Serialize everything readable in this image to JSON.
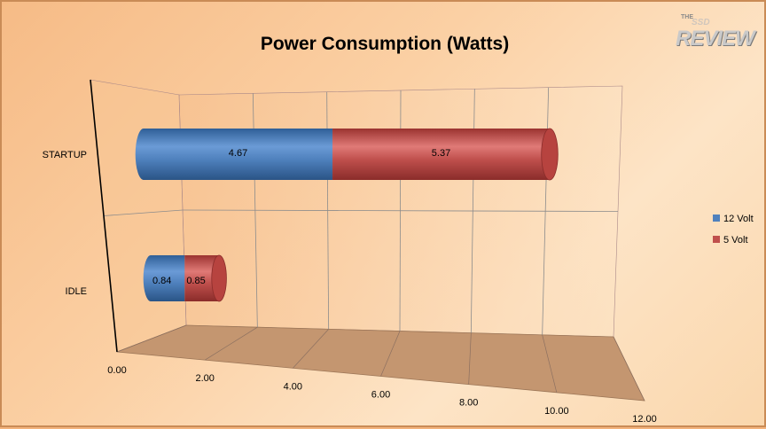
{
  "chart_data": {
    "type": "bar",
    "orientation": "horizontal",
    "stacked": true,
    "style": "3d-cylinder",
    "title": "Power Consumption (Watts)",
    "categories": [
      "STARTUP",
      "IDLE"
    ],
    "series": [
      {
        "name": "12 Volt",
        "values": [
          4.67,
          0.84
        ],
        "color": "#4f81bd"
      },
      {
        "name": "5 Volt",
        "values": [
          5.37,
          0.85
        ],
        "color": "#c0504d"
      }
    ],
    "xlim": [
      0,
      12
    ],
    "ticks": [
      "0.00",
      "2.00",
      "4.00",
      "6.00",
      "8.00",
      "10.00",
      "12.00"
    ],
    "data_labels": true,
    "grid": true,
    "legend_position": "right"
  },
  "logo": {
    "line1": "THE",
    "line2": "SSD",
    "line3": "REVIEW"
  }
}
